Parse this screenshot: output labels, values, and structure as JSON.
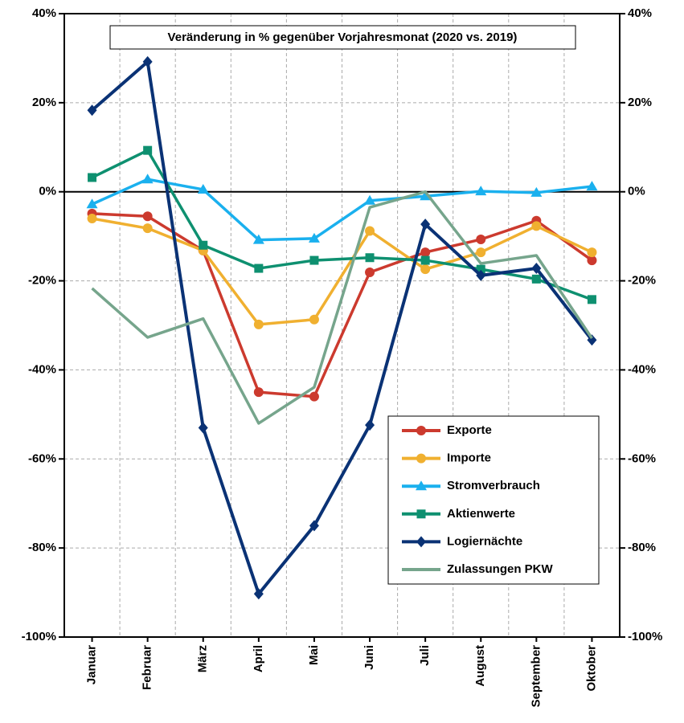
{
  "chart_data": {
    "type": "line",
    "title": "Veränderung in % gegenüber Vorjahresmonat (2020 vs. 2019)",
    "categories": [
      "Januar",
      "Februar",
      "März",
      "April",
      "Mai",
      "Juni",
      "Juli",
      "August",
      "September",
      "Oktober"
    ],
    "series": [
      {
        "name": "Exporte",
        "color": "#cc3a2e",
        "marker": "circle",
        "values": [
          -4.9,
          -5.5,
          -13.2,
          -45,
          -46,
          -18.1,
          -13.6,
          -10.7,
          -6.5,
          -15.4
        ]
      },
      {
        "name": "Importe",
        "color": "#f0b030",
        "marker": "circle",
        "values": [
          -6,
          -8.2,
          -13.2,
          -29.8,
          -28.7,
          -8.8,
          -17.4,
          -13.6,
          -7.7,
          -13.6
        ]
      },
      {
        "name": "Stromverbrauch",
        "color": "#1ab0ee",
        "marker": "triangle",
        "values": [
          -2.8,
          2.8,
          0.5,
          -10.8,
          -10.5,
          -2,
          -1,
          0.1,
          -0.2,
          1.2
        ]
      },
      {
        "name": "Aktienwerte",
        "color": "#0e9070",
        "marker": "square",
        "values": [
          3.2,
          9.3,
          -12,
          -17.2,
          -15.4,
          -14.8,
          -15.4,
          -17.4,
          -19.6,
          -24.2
        ]
      },
      {
        "name": "Logiernächte",
        "color": "#0a3275",
        "marker": "diamond",
        "values": [
          18.3,
          29.2,
          -53,
          -90.3,
          -75,
          -52.4,
          -7.3,
          -18.8,
          -17.2,
          -33.3
        ]
      },
      {
        "name": "Zulassungen PKW",
        "color": "#76a58c",
        "marker": "none",
        "values": [
          -21.7,
          -32.7,
          -28.5,
          -52,
          -43.9,
          -3.5,
          0,
          -16.1,
          -14.3,
          -32.9
        ]
      }
    ],
    "ylim": [
      -100,
      40
    ],
    "yticks": [
      {
        "value": -100,
        "label": "-100%"
      },
      {
        "value": -80,
        "label": "-80%"
      },
      {
        "value": -60,
        "label": "-60%"
      },
      {
        "value": -40,
        "label": "-40%"
      },
      {
        "value": -20,
        "label": "-20%"
      },
      {
        "value": 0,
        "label": "0%"
      },
      {
        "value": 20,
        "label": "20%"
      },
      {
        "value": 40,
        "label": "40%"
      }
    ],
    "y2lim": [
      -100,
      40
    ],
    "y2ticks": [
      {
        "value": -100,
        "label": "-100%"
      },
      {
        "value": -80,
        "label": "-80%"
      },
      {
        "value": -60,
        "label": "-60%"
      },
      {
        "value": -40,
        "label": "-40%"
      },
      {
        "value": -20,
        "label": "-20%"
      },
      {
        "value": 0,
        "label": "0%"
      },
      {
        "value": 20,
        "label": "20%"
      },
      {
        "value": 40,
        "label": "40%"
      }
    ],
    "grid": true,
    "legend": "lower right"
  }
}
